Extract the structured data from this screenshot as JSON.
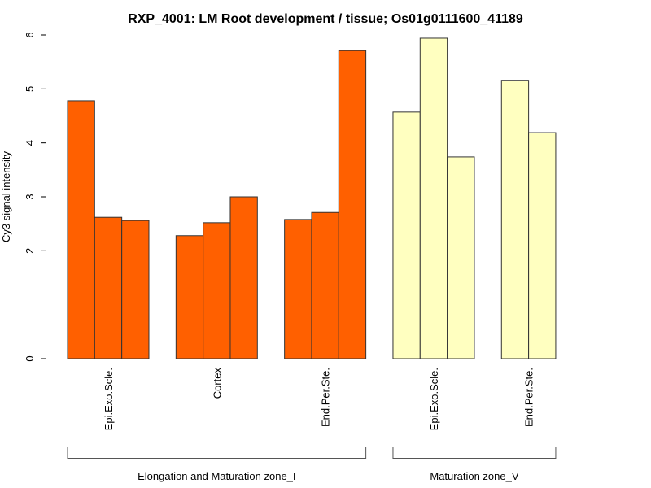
{
  "chart_data": {
    "type": "bar",
    "title": "RXP_4001: LM Root development / tissue; Os01g0111600_41189",
    "xlabel": "",
    "ylabel": "Cy3 signal intensity",
    "ylim": [
      0,
      6
    ],
    "yticks": [
      0,
      2,
      3,
      4,
      5,
      6
    ],
    "grid": false,
    "legend": "none",
    "groups": [
      {
        "name": "Elongation and Maturation zone_I",
        "color": "#FF6000",
        "categories": [
          {
            "label": "Epi.Exo.Scle.",
            "values": [
              4.78,
              2.62,
              2.56
            ]
          },
          {
            "label": "Cortex",
            "values": [
              2.28,
              2.52,
              3.0
            ]
          },
          {
            "label": "End.Per.Ste.",
            "values": [
              2.58,
              2.71,
              5.71
            ]
          }
        ]
      },
      {
        "name": "Maturation zone_V",
        "color": "#FFFFC0",
        "categories": [
          {
            "label": "Epi.Exo.Scle.",
            "values": [
              4.57,
              5.94,
              3.74
            ]
          },
          {
            "label": "End.Per.Ste.",
            "values": [
              5.16,
              4.19
            ]
          }
        ]
      }
    ]
  }
}
